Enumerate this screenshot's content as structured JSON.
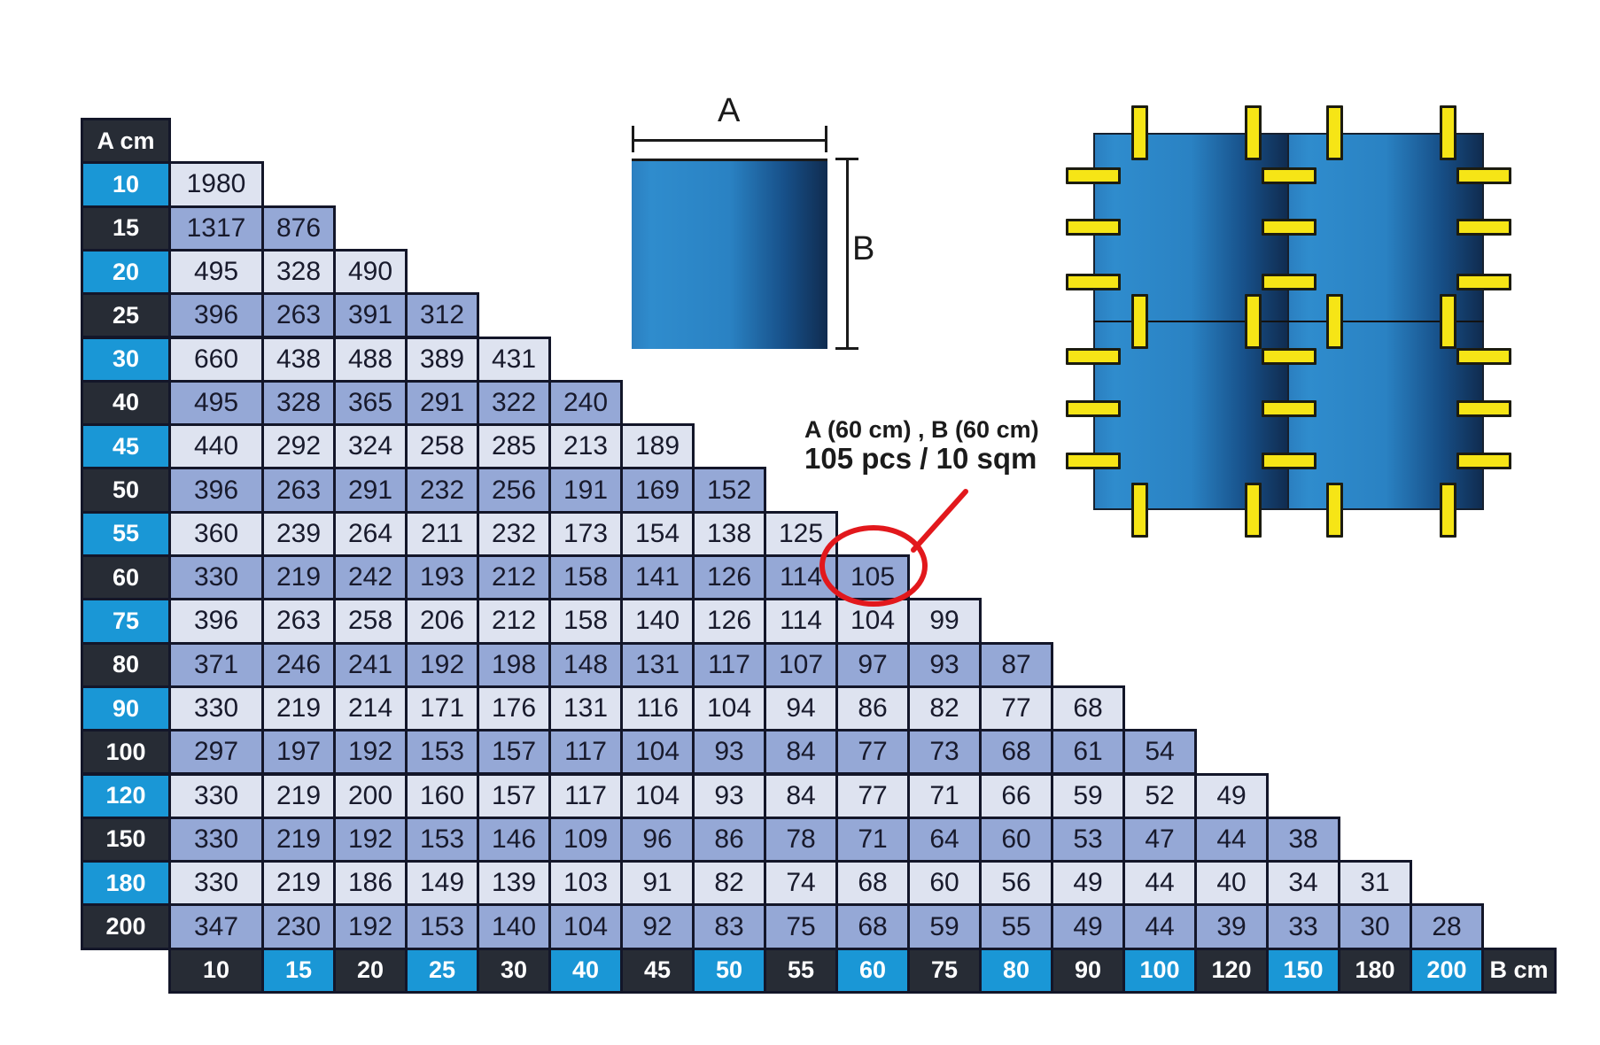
{
  "colors": {
    "cyan": "#1a97d6",
    "dark": "#272c35",
    "cell_light": "#dee3f0",
    "cell_medium": "#95a8d6",
    "border": "#131629",
    "text_dark": "#181a2c",
    "red": "#e2181c",
    "yellow": "#f6e516"
  },
  "table": {
    "corner_label": "A cm",
    "b_axis_label": "B cm"
  },
  "annotation": {
    "line1": "A (60 cm) , B (60 cm)",
    "line2": "105 pcs / 10 sqm"
  },
  "dimension_diagram": {
    "width_label": "A",
    "height_label": "B"
  },
  "chart_data": {
    "type": "table",
    "row_axis_label": "A cm",
    "col_axis_label": "B cm",
    "columns": [
      10,
      15,
      20,
      25,
      30,
      40,
      45,
      50,
      55,
      60,
      75,
      80,
      90,
      100,
      120,
      150,
      180,
      200
    ],
    "rows": [
      {
        "A": 10,
        "values": [
          1980
        ]
      },
      {
        "A": 15,
        "values": [
          1317,
          876
        ]
      },
      {
        "A": 20,
        "values": [
          495,
          328,
          490
        ]
      },
      {
        "A": 25,
        "values": [
          396,
          263,
          391,
          312
        ]
      },
      {
        "A": 30,
        "values": [
          660,
          438,
          488,
          389,
          431
        ]
      },
      {
        "A": 40,
        "values": [
          495,
          328,
          365,
          291,
          322,
          240
        ]
      },
      {
        "A": 45,
        "values": [
          440,
          292,
          324,
          258,
          285,
          213,
          189
        ]
      },
      {
        "A": 50,
        "values": [
          396,
          263,
          291,
          232,
          256,
          191,
          169,
          152
        ]
      },
      {
        "A": 55,
        "values": [
          360,
          239,
          264,
          211,
          232,
          173,
          154,
          138,
          125
        ]
      },
      {
        "A": 60,
        "values": [
          330,
          219,
          242,
          193,
          212,
          158,
          141,
          126,
          114,
          105
        ]
      },
      {
        "A": 75,
        "values": [
          396,
          263,
          258,
          206,
          212,
          158,
          140,
          126,
          114,
          104,
          99
        ]
      },
      {
        "A": 80,
        "values": [
          371,
          246,
          241,
          192,
          198,
          148,
          131,
          117,
          107,
          97,
          93,
          87
        ]
      },
      {
        "A": 90,
        "values": [
          330,
          219,
          214,
          171,
          176,
          131,
          116,
          104,
          94,
          86,
          82,
          77,
          68
        ]
      },
      {
        "A": 100,
        "values": [
          297,
          197,
          192,
          153,
          157,
          117,
          104,
          93,
          84,
          77,
          73,
          68,
          61,
          54
        ]
      },
      {
        "A": 120,
        "values": [
          330,
          219,
          200,
          160,
          157,
          117,
          104,
          93,
          84,
          77,
          71,
          66,
          59,
          52,
          49
        ]
      },
      {
        "A": 150,
        "values": [
          330,
          219,
          192,
          153,
          146,
          109,
          96,
          86,
          78,
          71,
          64,
          60,
          53,
          47,
          44,
          38
        ]
      },
      {
        "A": 180,
        "values": [
          330,
          219,
          186,
          149,
          139,
          103,
          91,
          82,
          74,
          68,
          60,
          56,
          49,
          44,
          40,
          34,
          31
        ]
      },
      {
        "A": 200,
        "values": [
          347,
          230,
          192,
          153,
          140,
          104,
          92,
          83,
          75,
          68,
          59,
          55,
          49,
          44,
          39,
          33,
          30,
          28
        ]
      }
    ],
    "highlight": {
      "A": 60,
      "B": 60,
      "value": 105
    }
  }
}
